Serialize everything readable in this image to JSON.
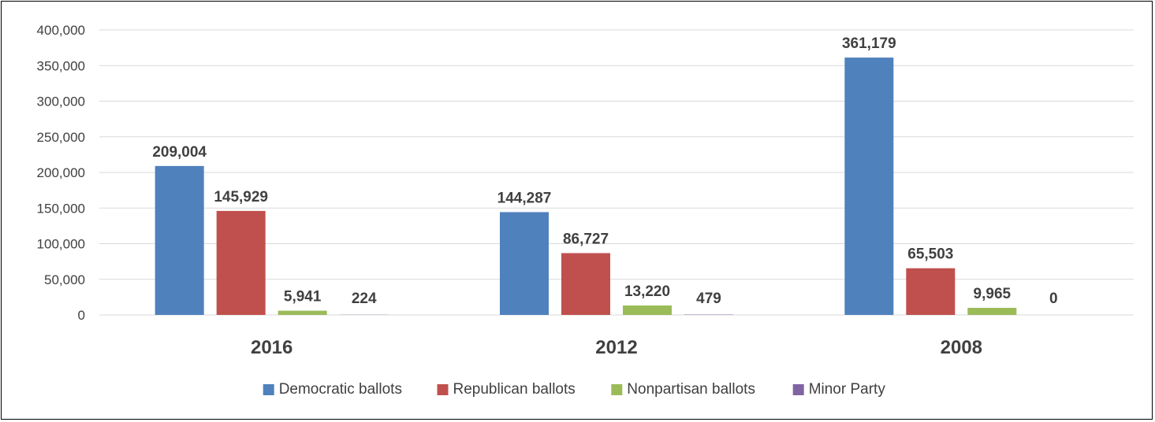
{
  "chart_data": {
    "type": "bar",
    "categories": [
      "2016",
      "2012",
      "2008"
    ],
    "series": [
      {
        "name": "Democratic ballots",
        "color": "#4f81bd",
        "values": [
          209004,
          144287,
          361179
        ]
      },
      {
        "name": "Republican ballots",
        "color": "#c0504d",
        "values": [
          145929,
          86727,
          65503
        ]
      },
      {
        "name": "Nonpartisan ballots",
        "color": "#9bbb59",
        "values": [
          5941,
          13220,
          9965
        ]
      },
      {
        "name": "Minor Party",
        "color": "#8064a2",
        "values": [
          224,
          479,
          0
        ]
      }
    ],
    "data_labels": [
      [
        "209,004",
        "144,287",
        "361,179"
      ],
      [
        "145,929",
        "86,727",
        "65,503"
      ],
      [
        "5,941",
        "13,220",
        "9,965"
      ],
      [
        "224",
        "479",
        "0"
      ]
    ],
    "y_ticks": [
      "0",
      "50,000",
      "100,000",
      "150,000",
      "200,000",
      "250,000",
      "300,000",
      "350,000",
      "400,000"
    ],
    "ylim": [
      0,
      400000
    ],
    "ystep": 50000,
    "grid": true,
    "legend": "bottom",
    "title": "",
    "xlabel": "",
    "ylabel": ""
  }
}
